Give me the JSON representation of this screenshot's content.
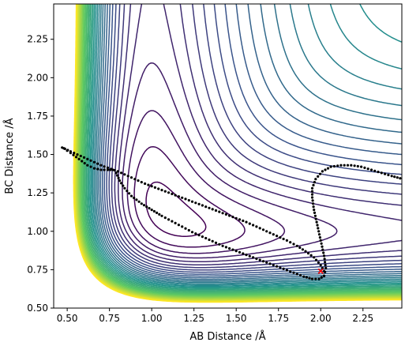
{
  "chart_data": {
    "type": "contour",
    "title": "",
    "xlabel": "AB Distance /Å",
    "ylabel": "BC Distance /Å",
    "xlim": [
      0.42,
      2.48
    ],
    "ylim": [
      0.5,
      2.48
    ],
    "xticks": [
      {
        "value": 0.5,
        "label": "0.50"
      },
      {
        "value": 0.75,
        "label": "0.75"
      },
      {
        "value": 1.0,
        "label": "1.00"
      },
      {
        "value": 1.25,
        "label": "1.25"
      },
      {
        "value": 1.5,
        "label": "1.50"
      },
      {
        "value": 1.75,
        "label": "1.75"
      },
      {
        "value": 2.0,
        "label": "2.00"
      },
      {
        "value": 2.25,
        "label": "2.25"
      }
    ],
    "yticks": [
      {
        "value": 0.5,
        "label": "0.50"
      },
      {
        "value": 0.75,
        "label": "0.75"
      },
      {
        "value": 1.0,
        "label": "1.00"
      },
      {
        "value": 1.25,
        "label": "1.25"
      },
      {
        "value": 1.5,
        "label": "1.50"
      },
      {
        "value": 1.75,
        "label": "1.75"
      },
      {
        "value": 2.0,
        "label": "2.00"
      },
      {
        "value": 2.25,
        "label": "2.25"
      }
    ],
    "grid": false,
    "colormap": "viridis",
    "colormap_stops": [
      "#440154",
      "#3b528b",
      "#21918c",
      "#5ec962",
      "#fde725"
    ],
    "contour_levels": 36,
    "trajectory": {
      "color": "#000000",
      "points": [
        [
          0.47,
          1.545
        ],
        [
          0.52,
          1.52
        ],
        [
          0.58,
          1.49
        ],
        [
          0.64,
          1.46
        ],
        [
          0.7,
          1.43
        ],
        [
          0.76,
          1.405
        ],
        [
          0.8,
          1.39
        ],
        [
          0.84,
          1.37
        ],
        [
          0.9,
          1.34
        ],
        [
          0.96,
          1.31
        ],
        [
          1.02,
          1.285
        ],
        [
          1.08,
          1.26
        ],
        [
          1.14,
          1.235
        ],
        [
          1.2,
          1.21
        ],
        [
          1.26,
          1.185
        ],
        [
          1.32,
          1.16
        ],
        [
          1.38,
          1.135
        ],
        [
          1.44,
          1.11
        ],
        [
          1.5,
          1.085
        ],
        [
          1.56,
          1.06
        ],
        [
          1.62,
          1.03
        ],
        [
          1.68,
          1.0
        ],
        [
          1.74,
          0.97
        ],
        [
          1.8,
          0.94
        ],
        [
          1.86,
          0.905
        ],
        [
          1.91,
          0.87
        ],
        [
          1.96,
          0.83
        ],
        [
          2.0,
          0.78
        ],
        [
          2.02,
          0.74
        ],
        [
          2.02,
          0.71
        ],
        [
          1.99,
          0.69
        ],
        [
          1.95,
          0.69
        ],
        [
          1.9,
          0.705
        ],
        [
          1.84,
          0.73
        ],
        [
          1.78,
          0.755
        ],
        [
          1.72,
          0.78
        ],
        [
          1.66,
          0.805
        ],
        [
          1.6,
          0.83
        ],
        [
          1.54,
          0.855
        ],
        [
          1.48,
          0.88
        ],
        [
          1.42,
          0.905
        ],
        [
          1.36,
          0.935
        ],
        [
          1.3,
          0.965
        ],
        [
          1.24,
          0.995
        ],
        [
          1.18,
          1.03
        ],
        [
          1.12,
          1.065
        ],
        [
          1.06,
          1.1
        ],
        [
          1.0,
          1.14
        ],
        [
          0.94,
          1.18
        ],
        [
          0.88,
          1.23
        ],
        [
          0.84,
          1.28
        ],
        [
          0.81,
          1.33
        ],
        [
          0.79,
          1.38
        ],
        [
          0.77,
          1.4
        ],
        [
          0.74,
          1.4
        ],
        [
          0.7,
          1.4
        ],
        [
          0.66,
          1.41
        ],
        [
          0.62,
          1.43
        ],
        [
          0.57,
          1.47
        ],
        [
          0.52,
          1.51
        ],
        [
          0.48,
          1.54
        ]
      ],
      "branch_points": [
        [
          2.02,
          0.71
        ],
        [
          2.03,
          0.76
        ],
        [
          2.02,
          0.84
        ],
        [
          2.0,
          0.94
        ],
        [
          1.98,
          1.04
        ],
        [
          1.96,
          1.14
        ],
        [
          1.95,
          1.22
        ],
        [
          1.95,
          1.28
        ],
        [
          1.97,
          1.34
        ],
        [
          2.01,
          1.39
        ],
        [
          2.06,
          1.42
        ],
        [
          2.12,
          1.43
        ],
        [
          2.18,
          1.43
        ],
        [
          2.24,
          1.42
        ],
        [
          2.3,
          1.4
        ],
        [
          2.36,
          1.38
        ],
        [
          2.42,
          1.36
        ],
        [
          2.47,
          1.345
        ]
      ]
    },
    "marker": {
      "x": 2.0,
      "y": 0.74,
      "color": "#ff0000",
      "shape": "x"
    }
  }
}
